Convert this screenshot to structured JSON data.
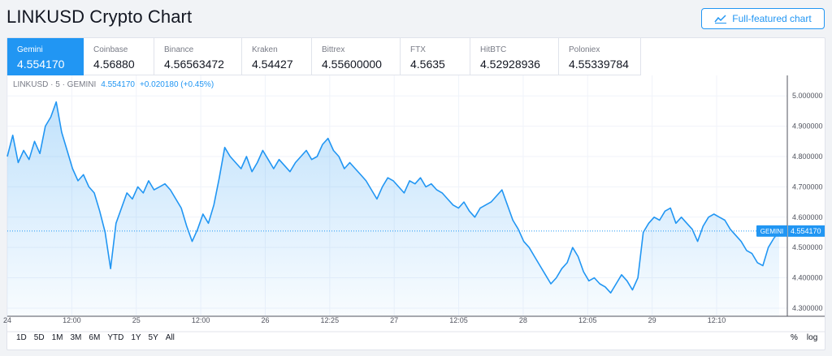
{
  "page": {
    "title": "LINKUSD Crypto Chart",
    "full_chart_label": "Full-featured chart"
  },
  "exchanges": [
    {
      "name": "Gemini",
      "price": "4.554170",
      "active": true
    },
    {
      "name": "Coinbase",
      "price": "4.56880",
      "active": false
    },
    {
      "name": "Binance",
      "price": "4.56563472",
      "active": false
    },
    {
      "name": "Kraken",
      "price": "4.54427",
      "active": false
    },
    {
      "name": "Bittrex",
      "price": "4.55600000",
      "active": false
    },
    {
      "name": "FTX",
      "price": "4.5635",
      "active": false
    },
    {
      "name": "HitBTC",
      "price": "4.52928936",
      "active": false
    },
    {
      "name": "Poloniex",
      "price": "4.55339784",
      "active": false
    }
  ],
  "legend": {
    "symbol": "LINKUSD · 5 · GEMINI",
    "price": "4.554170",
    "change": "+0.020180 (+0.45%)"
  },
  "chart_data": {
    "type": "area",
    "series": [
      {
        "name": "GEMINI",
        "last_value": 4.55417,
        "last_label": "4.554170",
        "values": [
          4.8,
          4.87,
          4.78,
          4.82,
          4.79,
          4.85,
          4.81,
          4.9,
          4.93,
          4.98,
          4.88,
          4.82,
          4.76,
          4.72,
          4.74,
          4.7,
          4.68,
          4.62,
          4.55,
          4.43,
          4.58,
          4.63,
          4.68,
          4.66,
          4.7,
          4.68,
          4.72,
          4.69,
          4.7,
          4.71,
          4.69,
          4.66,
          4.63,
          4.57,
          4.52,
          4.56,
          4.61,
          4.58,
          4.64,
          4.73,
          4.83,
          4.8,
          4.78,
          4.76,
          4.8,
          4.75,
          4.78,
          4.82,
          4.79,
          4.76,
          4.79,
          4.77,
          4.75,
          4.78,
          4.8,
          4.82,
          4.79,
          4.8,
          4.84,
          4.86,
          4.82,
          4.8,
          4.76,
          4.78,
          4.76,
          4.74,
          4.72,
          4.69,
          4.66,
          4.7,
          4.73,
          4.72,
          4.7,
          4.68,
          4.72,
          4.71,
          4.73,
          4.7,
          4.71,
          4.69,
          4.68,
          4.66,
          4.64,
          4.63,
          4.65,
          4.62,
          4.6,
          4.63,
          4.64,
          4.65,
          4.67,
          4.69,
          4.64,
          4.59,
          4.56,
          4.52,
          4.5,
          4.47,
          4.44,
          4.41,
          4.38,
          4.4,
          4.43,
          4.45,
          4.5,
          4.47,
          4.42,
          4.39,
          4.4,
          4.38,
          4.37,
          4.35,
          4.38,
          4.41,
          4.39,
          4.36,
          4.4,
          4.55,
          4.58,
          4.6,
          4.59,
          4.62,
          4.63,
          4.58,
          4.6,
          4.58,
          4.56,
          4.52,
          4.57,
          4.6,
          4.61,
          4.6,
          4.59,
          4.56,
          4.54,
          4.52,
          4.49,
          4.48,
          4.45,
          4.44,
          4.5,
          4.53,
          4.554
        ]
      }
    ],
    "x_tick_labels": [
      "24",
      "12:00",
      "25",
      "12:00",
      "26",
      "12:25",
      "27",
      "12:05",
      "28",
      "12:05",
      "29",
      "12:10"
    ],
    "y_tick_labels": [
      "5.000000",
      "4.900000",
      "4.800000",
      "4.700000",
      "4.600000",
      "4.500000",
      "4.400000",
      "4.300000"
    ],
    "ylim": [
      4.2731,
      5.0675
    ],
    "y_ticks": [
      5.0,
      4.9,
      4.8,
      4.7,
      4.6,
      4.5,
      4.4,
      4.3
    ],
    "grid": true,
    "color": "#2196f3"
  },
  "ranges": [
    "1D",
    "5D",
    "1M",
    "3M",
    "6M",
    "YTD",
    "1Y",
    "5Y",
    "All"
  ],
  "scale_options": [
    "%",
    "log"
  ]
}
